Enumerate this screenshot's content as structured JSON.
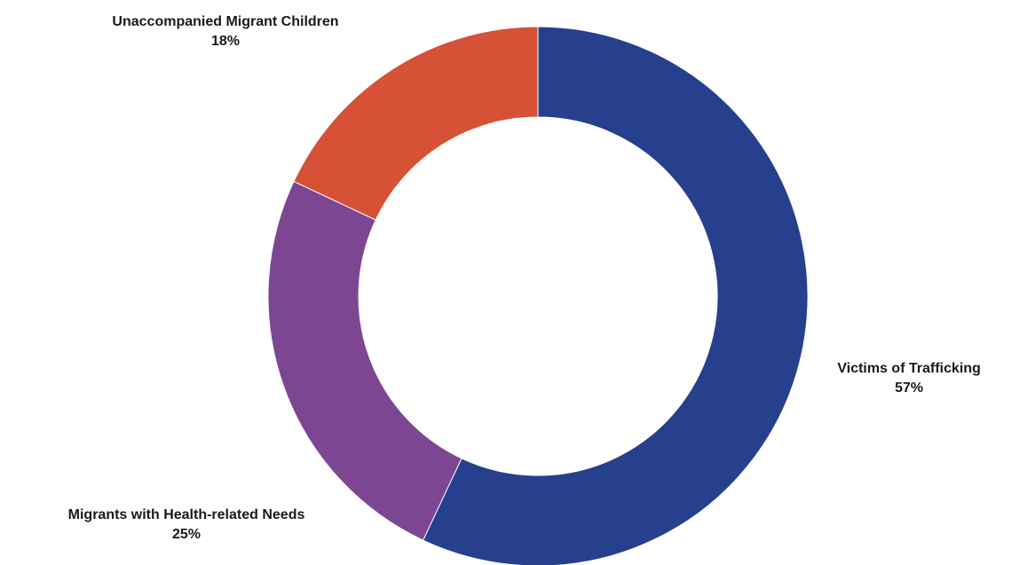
{
  "chart_data": {
    "type": "pie",
    "variant": "donut",
    "slices": [
      {
        "label": "Victims of Trafficking",
        "value": 57,
        "value_label": "57%",
        "color": "#26408e"
      },
      {
        "label": "Migrants with Health-related Needs",
        "value": 25,
        "value_label": "25%",
        "color": "#7d4693"
      },
      {
        "label": "Unaccompanied Migrant Children",
        "value": 18,
        "value_label": "18%",
        "color": "#d65135"
      }
    ]
  }
}
